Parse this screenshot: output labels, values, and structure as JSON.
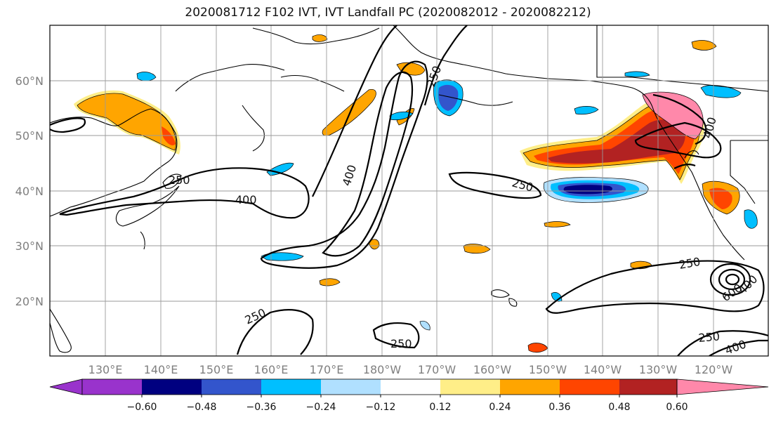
{
  "title": "2020081712 F102 IVT, IVT Landfall PC (2020082012 - 2020082212)",
  "map": {
    "lon_labels": [
      "130°E",
      "140°E",
      "150°E",
      "160°E",
      "170°E",
      "180°W",
      "170°W",
      "160°W",
      "150°W",
      "140°W",
      "130°W",
      "120°W"
    ],
    "lat_labels": [
      "60°N",
      "50°N",
      "40°N",
      "30°N",
      "20°N"
    ],
    "contour_labels": [
      "250",
      "400",
      "250",
      "400",
      "250",
      "250",
      "250",
      "250",
      "400",
      "250",
      "600",
      "400",
      "250",
      "400",
      "250"
    ]
  },
  "colorbar": {
    "colors": [
      "#9933cc",
      "#000080",
      "#3355cc",
      "#00bfff",
      "#b0e0ff",
      "#ffffff",
      "#ffee88",
      "#ffa500",
      "#ff4500",
      "#b22222",
      "#ff88aa"
    ],
    "tick_labels": [
      "−0.60",
      "−0.48",
      "−0.36",
      "−0.24",
      "−0.12",
      "0.12",
      "0.24",
      "0.36",
      "0.48",
      "0.60"
    ]
  }
}
